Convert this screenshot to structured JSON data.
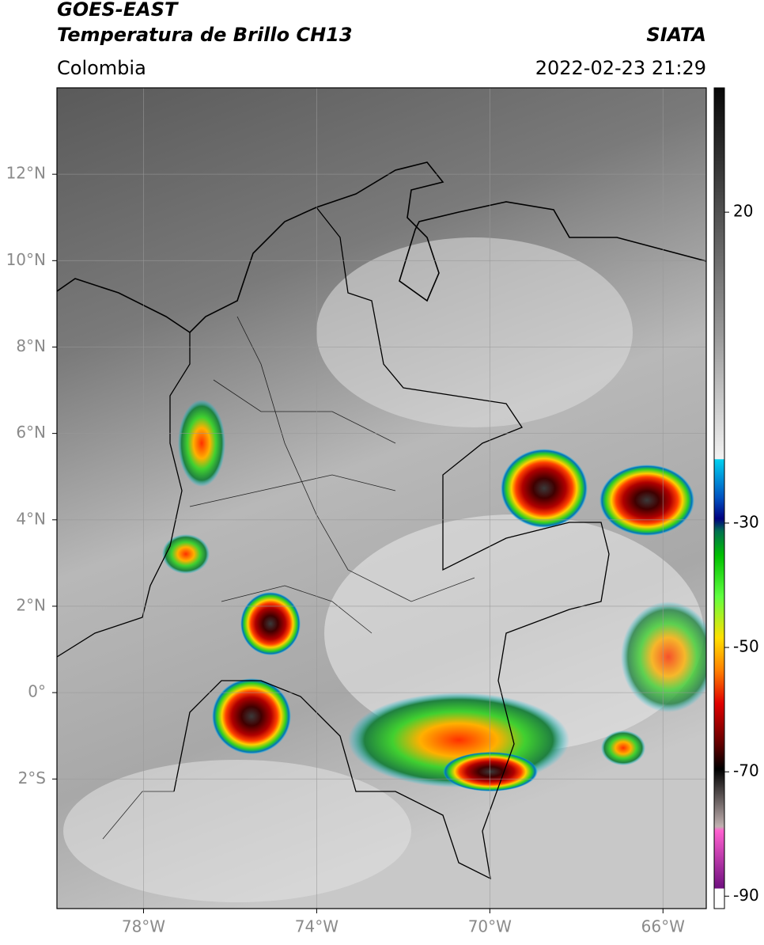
{
  "header": {
    "title": "GOES-EAST",
    "subtitle": "Temperatura de Brillo CH13",
    "source": "SIATA",
    "region": "Colombia",
    "datetime": "2022-02-23 21:29"
  },
  "map": {
    "lonlim": [
      -80,
      -65
    ],
    "latlim": [
      -5,
      14
    ],
    "lat_ticks": [
      {
        "value": 12,
        "label": "12°N"
      },
      {
        "value": 10,
        "label": "10°N"
      },
      {
        "value": 8,
        "label": "8°N"
      },
      {
        "value": 6,
        "label": "6°N"
      },
      {
        "value": 4,
        "label": "4°N"
      },
      {
        "value": 2,
        "label": "2°N"
      },
      {
        "value": 0,
        "label": "0°"
      },
      {
        "value": -2,
        "label": "2°S"
      }
    ],
    "lon_ticks": [
      {
        "value": -78,
        "label": "78°W"
      },
      {
        "value": -74,
        "label": "74°W"
      },
      {
        "value": -70,
        "label": "70°W"
      },
      {
        "value": -66,
        "label": "66°W"
      }
    ]
  },
  "colorbar": {
    "clim": [
      -92,
      40
    ],
    "ticks": [
      20,
      -30,
      -50,
      -70,
      -90
    ]
  }
}
